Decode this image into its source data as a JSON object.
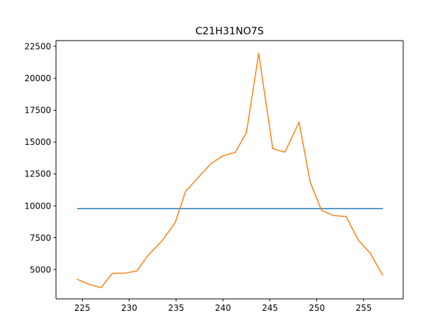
{
  "chart_data": {
    "type": "line",
    "title": "C21H31NO7S",
    "xlabel": "",
    "ylabel": "",
    "xlim": [
      222.2,
      259.2
    ],
    "ylim": [
      2700,
      22950
    ],
    "grid": false,
    "legend": "none",
    "x_ticks": [
      {
        "value": 225,
        "label": "225"
      },
      {
        "value": 230,
        "label": "230"
      },
      {
        "value": 235,
        "label": "235"
      },
      {
        "value": 240,
        "label": "240"
      },
      {
        "value": 245,
        "label": "245"
      },
      {
        "value": 250,
        "label": "250"
      },
      {
        "value": 255,
        "label": "255"
      }
    ],
    "y_ticks": [
      {
        "value": 5000,
        "label": "5000"
      },
      {
        "value": 7500,
        "label": "7500"
      },
      {
        "value": 10000,
        "label": "10000"
      },
      {
        "value": 12500,
        "label": "12500"
      },
      {
        "value": 15000,
        "label": "15000"
      },
      {
        "value": 17500,
        "label": "17500"
      },
      {
        "value": 20000,
        "label": "20000"
      },
      {
        "value": 22500,
        "label": "22500"
      }
    ],
    "series": [
      {
        "color": "#1f77b4",
        "x": [
          224.5,
          257.0
        ],
        "y": [
          9780,
          9780
        ]
      },
      {
        "color": "#ff7f0e",
        "x": [
          224.5,
          225.7,
          227.0,
          228.2,
          229.5,
          230.8,
          232.0,
          233.5,
          234.9,
          236.0,
          238.7,
          240.0,
          241.3,
          242.5,
          243.8,
          245.3,
          246.6,
          248.1,
          249.3,
          250.5,
          251.8,
          253.1,
          254.4,
          255.7,
          257.0
        ],
        "y": [
          4230,
          3850,
          3580,
          4700,
          4720,
          4880,
          6100,
          7250,
          8680,
          11120,
          13300,
          13920,
          14180,
          15760,
          21940,
          14480,
          14200,
          16560,
          11820,
          9640,
          9230,
          9160,
          7330,
          6260,
          4580
        ]
      }
    ]
  }
}
